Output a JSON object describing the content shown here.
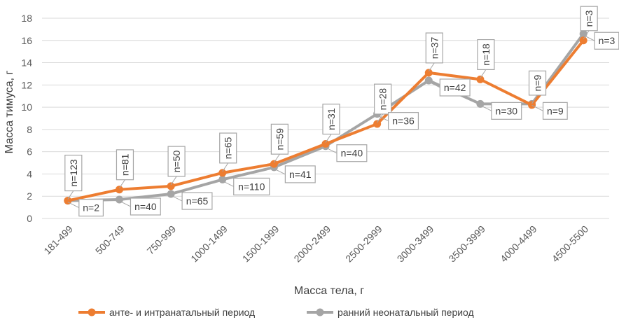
{
  "chart_data": {
    "type": "line",
    "title": "",
    "xlabel": "Масса тела, г",
    "ylabel": "Масса тимуса, г",
    "ylim": [
      0,
      18
    ],
    "yticks": [
      0,
      2,
      4,
      6,
      8,
      10,
      12,
      14,
      16,
      18
    ],
    "grid": true,
    "legend_position": "bottom",
    "categories": [
      "181-499",
      "500-749",
      "750-999",
      "1000-1499",
      "1500-1999",
      "2000-2499",
      "2500-2999",
      "3000-3499",
      "3500-3999",
      "4000-4499",
      "4500-5500"
    ],
    "series": [
      {
        "name": "анте- и интранатальный период",
        "color": "#ED7D31",
        "values": [
          1.6,
          2.6,
          2.9,
          4.1,
          4.9,
          6.7,
          8.5,
          13.1,
          12.5,
          10.2,
          16.0
        ],
        "labels": [
          "n=123",
          "n=81",
          "n=50",
          "n=65",
          "n=59",
          "n=31",
          "n=28",
          "n=37",
          "n=18",
          "n=9",
          "n=3"
        ]
      },
      {
        "name": "ранний неонатальный период",
        "color": "#A5A5A5",
        "values": [
          1.6,
          1.7,
          2.2,
          3.5,
          4.6,
          6.5,
          9.4,
          12.4,
          10.3,
          10.3,
          16.6
        ],
        "labels": [
          "n=2",
          "n=40",
          "n=65",
          "n=110",
          "n=41",
          "n=40",
          "n=36",
          "n=42",
          "n=30",
          "n=9",
          "n=3"
        ]
      }
    ]
  }
}
